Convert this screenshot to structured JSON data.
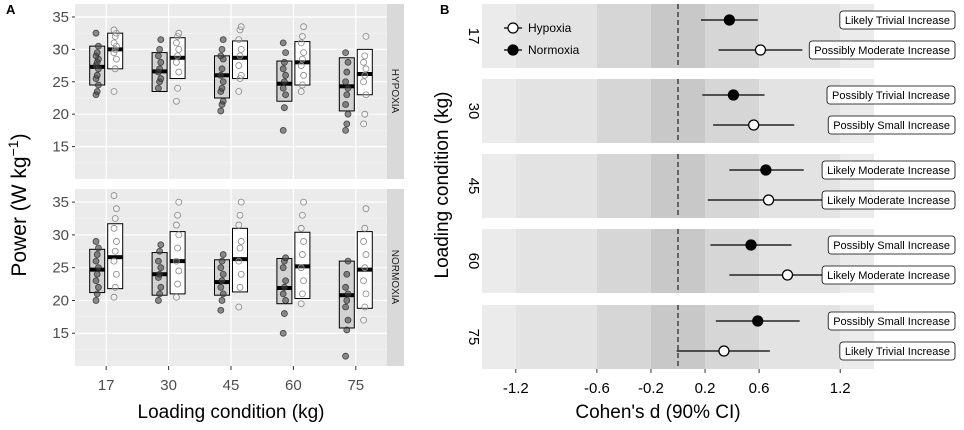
{
  "panel_a": {
    "letter": "A",
    "ylabel_main": "Power (W kg",
    "ylabel_sup": "−1",
    "ylabel_end": ")",
    "xlabel": "Loading condition (kg)",
    "strips": [
      "HYPOXIA",
      "NORMOXIA"
    ]
  },
  "panel_b": {
    "letter": "B",
    "xlabel": "Cohen's d (90% CI)",
    "ylabel": "Loading condition (kg)",
    "legend": [
      "Hypoxia",
      "Normoxia"
    ]
  },
  "chart_data": [
    {
      "type": "box",
      "panel": "A",
      "title": "",
      "xlabel": "Loading condition (kg)",
      "ylabel": "Power (W kg−1)",
      "categories": [
        "17",
        "30",
        "45",
        "60",
        "75"
      ],
      "ylim": [
        10,
        37
      ],
      "yticks": [
        15,
        20,
        25,
        30,
        35
      ],
      "facets": [
        {
          "name": "HYPOXIA",
          "pre": {
            "q1": [
              24.5,
              23.5,
              22.5,
              22.0,
              20.5
            ],
            "median": [
              27.3,
              26.6,
              26.0,
              24.7,
              24.3
            ],
            "q3": [
              30.5,
              29.5,
              29.0,
              28.2,
              28.7
            ],
            "points": [
              [
                23,
                23.5,
                24.5,
                25.5,
                26,
                27,
                27.5,
                28,
                28.5,
                29,
                29.5,
                30.5,
                32.5
              ],
              [
                24,
                25,
                25.5,
                26.5,
                27,
                28,
                29,
                30,
                31.5
              ],
              [
                20.5,
                21.5,
                22,
                23.5,
                24,
                25,
                26,
                27,
                28.5,
                29,
                30,
                31.5
              ],
              [
                17.5,
                21,
                23,
                24,
                25,
                26,
                27,
                28,
                29.5,
                31
              ],
              [
                17.5,
                18.5,
                20,
                21.5,
                23,
                24,
                25,
                26.5,
                28,
                29.5
              ]
            ]
          },
          "post": {
            "q1": [
              27.0,
              25.5,
              25.5,
              24.5,
              23.0
            ],
            "median": [
              30.0,
              28.7,
              28.7,
              28.0,
              26.2
            ],
            "q3": [
              32.5,
              31.8,
              31.3,
              31.2,
              30.0
            ],
            "points": [
              [
                23.5,
                27,
                28.5,
                29.5,
                30,
                30.5,
                31,
                32,
                32.5,
                33
              ],
              [
                22,
                24,
                26.5,
                28,
                29,
                30,
                31,
                32,
                32.5
              ],
              [
                23.5,
                25.5,
                26,
                27.5,
                29,
                30,
                31.5,
                33,
                33.5
              ],
              [
                23.5,
                24.5,
                26,
                27.5,
                28.5,
                29.5,
                31,
                32,
                33.5
              ],
              [
                18.5,
                20,
                23,
                25,
                26,
                27,
                28,
                29,
                32
              ]
            ]
          }
        },
        {
          "name": "NORMOXIA",
          "pre": {
            "q1": [
              21.2,
              20.8,
              20.8,
              19.5,
              15.8
            ],
            "median": [
              24.7,
              24.0,
              22.8,
              21.9,
              20.8
            ],
            "q3": [
              27.8,
              27.3,
              26.2,
              26.4,
              26.0
            ],
            "points": [
              [
                20,
                21,
                22,
                23,
                24,
                25,
                26,
                27,
                28,
                29
              ],
              [
                20,
                21,
                22,
                23.5,
                24,
                25,
                26,
                27.5,
                28.5
              ],
              [
                18.5,
                20,
                21,
                22,
                23,
                24,
                25,
                26,
                27
              ],
              [
                15,
                18,
                20,
                21,
                22,
                23,
                25,
                26,
                26.5
              ],
              [
                11.5,
                15.5,
                17,
                19,
                20,
                21,
                22,
                24,
                26
              ]
            ]
          },
          "post": {
            "q1": [
              21.8,
              21.0,
              21.3,
              20.3,
              18.8
            ],
            "median": [
              26.6,
              26.0,
              26.3,
              25.2,
              24.7
            ],
            "q3": [
              31.7,
              30.5,
              31.0,
              30.4,
              30.5
            ],
            "points": [
              [
                20.5,
                22,
                24,
                26,
                27.5,
                29,
                31,
                32.5,
                34,
                36
              ],
              [
                20.5,
                22.5,
                24.5,
                26,
                28,
                30,
                31.5,
                33,
                35
              ],
              [
                19,
                22,
                24,
                26,
                28,
                29,
                31.5,
                33,
                35
              ],
              [
                19.5,
                21,
                23,
                25,
                27,
                29,
                31,
                33,
                35
              ],
              [
                17,
                19,
                21,
                23,
                25,
                27,
                29,
                31,
                34
              ]
            ]
          }
        }
      ]
    },
    {
      "type": "forest",
      "panel": "B",
      "title": "",
      "xlabel": "Cohen's d (90% CI)",
      "ylabel": "Loading condition (kg)",
      "xlim": [
        -1.45,
        1.45
      ],
      "xticks": [
        -1.2,
        -0.6,
        -0.2,
        0.2,
        0.6,
        1.2
      ],
      "xtick_labels": [
        "-1.2",
        "-0.6",
        "-0.2",
        "0.2",
        "0.6",
        "1.2"
      ],
      "reference_line": 0,
      "threshold_bands": [
        0.2,
        0.6,
        1.2
      ],
      "series_names": [
        "Normoxia",
        "Hypoxia"
      ],
      "groups": [
        {
          "label": "17",
          "rows": [
            {
              "series": "Normoxia",
              "d": 0.38,
              "lo": 0.17,
              "hi": 0.59,
              "inference": "Likely Trivial Increase"
            },
            {
              "series": "Hypoxia",
              "d": 0.61,
              "lo": 0.3,
              "hi": 0.92,
              "inference": "Possibly Moderate Increase"
            }
          ]
        },
        {
          "label": "30",
          "rows": [
            {
              "series": "Normoxia",
              "d": 0.41,
              "lo": 0.18,
              "hi": 0.64,
              "inference": "Possibly Trivial Increase"
            },
            {
              "series": "Hypoxia",
              "d": 0.56,
              "lo": 0.26,
              "hi": 0.86,
              "inference": "Possibly Small Increase"
            }
          ]
        },
        {
          "label": "45",
          "rows": [
            {
              "series": "Normoxia",
              "d": 0.65,
              "lo": 0.38,
              "hi": 0.93,
              "inference": "Likely Moderate Increase"
            },
            {
              "series": "Hypoxia",
              "d": 0.67,
              "lo": 0.22,
              "hi": 1.12,
              "inference": "Likely Moderate Increase"
            }
          ]
        },
        {
          "label": "60",
          "rows": [
            {
              "series": "Normoxia",
              "d": 0.54,
              "lo": 0.24,
              "hi": 0.84,
              "inference": "Possibly Small Increase"
            },
            {
              "series": "Hypoxia",
              "d": 0.81,
              "lo": 0.38,
              "hi": 1.24,
              "inference": "Likely Moderate Increase"
            }
          ]
        },
        {
          "label": "75",
          "rows": [
            {
              "series": "Normoxia",
              "d": 0.59,
              "lo": 0.28,
              "hi": 0.9,
              "inference": "Possibly Small Increase"
            },
            {
              "series": "Hypoxia",
              "d": 0.34,
              "lo": -0.01,
              "hi": 0.68,
              "inference": "Likely Trivial Increase"
            }
          ]
        }
      ]
    }
  ]
}
